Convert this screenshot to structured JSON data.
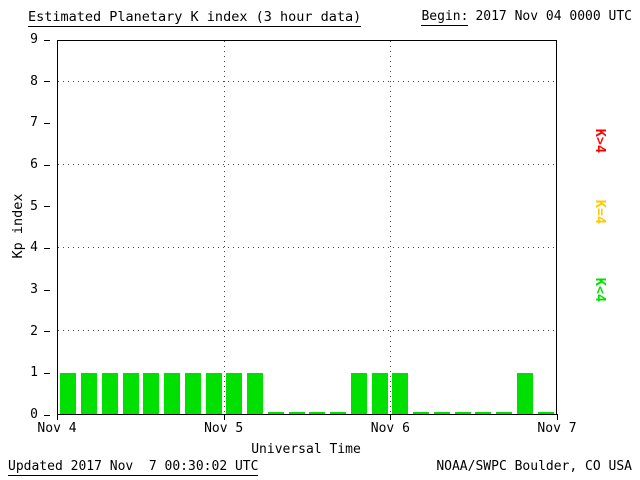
{
  "header": {
    "title": "Estimated Planetary K index (3 hour data)",
    "begin_label": "Begin:",
    "begin_value": "2017 Nov 04 0000 UTC"
  },
  "chart_data": {
    "type": "bar",
    "title": "Estimated Planetary K index (3 hour data)",
    "xlabel": "Universal Time",
    "ylabel": "Kp index",
    "ylim": [
      0,
      9
    ],
    "y_ticks": [
      0,
      1,
      2,
      3,
      4,
      5,
      6,
      7,
      8,
      9
    ],
    "grid_y": [
      2,
      4,
      6,
      8
    ],
    "grid": "dotted",
    "x_tick_labels": [
      "Nov 4",
      "Nov 5",
      "Nov 6",
      "Nov 7"
    ],
    "interval_hours": 3,
    "bar_color": "#00e000",
    "values": [
      1,
      1,
      1,
      1,
      1,
      1,
      1,
      1,
      1,
      1,
      0,
      0,
      0,
      0,
      1,
      1,
      1,
      0,
      0,
      0,
      0,
      0,
      1,
      0
    ],
    "legend": [
      {
        "label": "K>4",
        "color": "#ff0000"
      },
      {
        "label": "K=4",
        "color": "#ffc800"
      },
      {
        "label": "K<4",
        "color": "#00e000"
      }
    ],
    "legend_position": "right"
  },
  "footer": {
    "updated": "Updated 2017 Nov  7 00:30:02 UTC",
    "source": "NOAA/SWPC Boulder, CO USA"
  }
}
